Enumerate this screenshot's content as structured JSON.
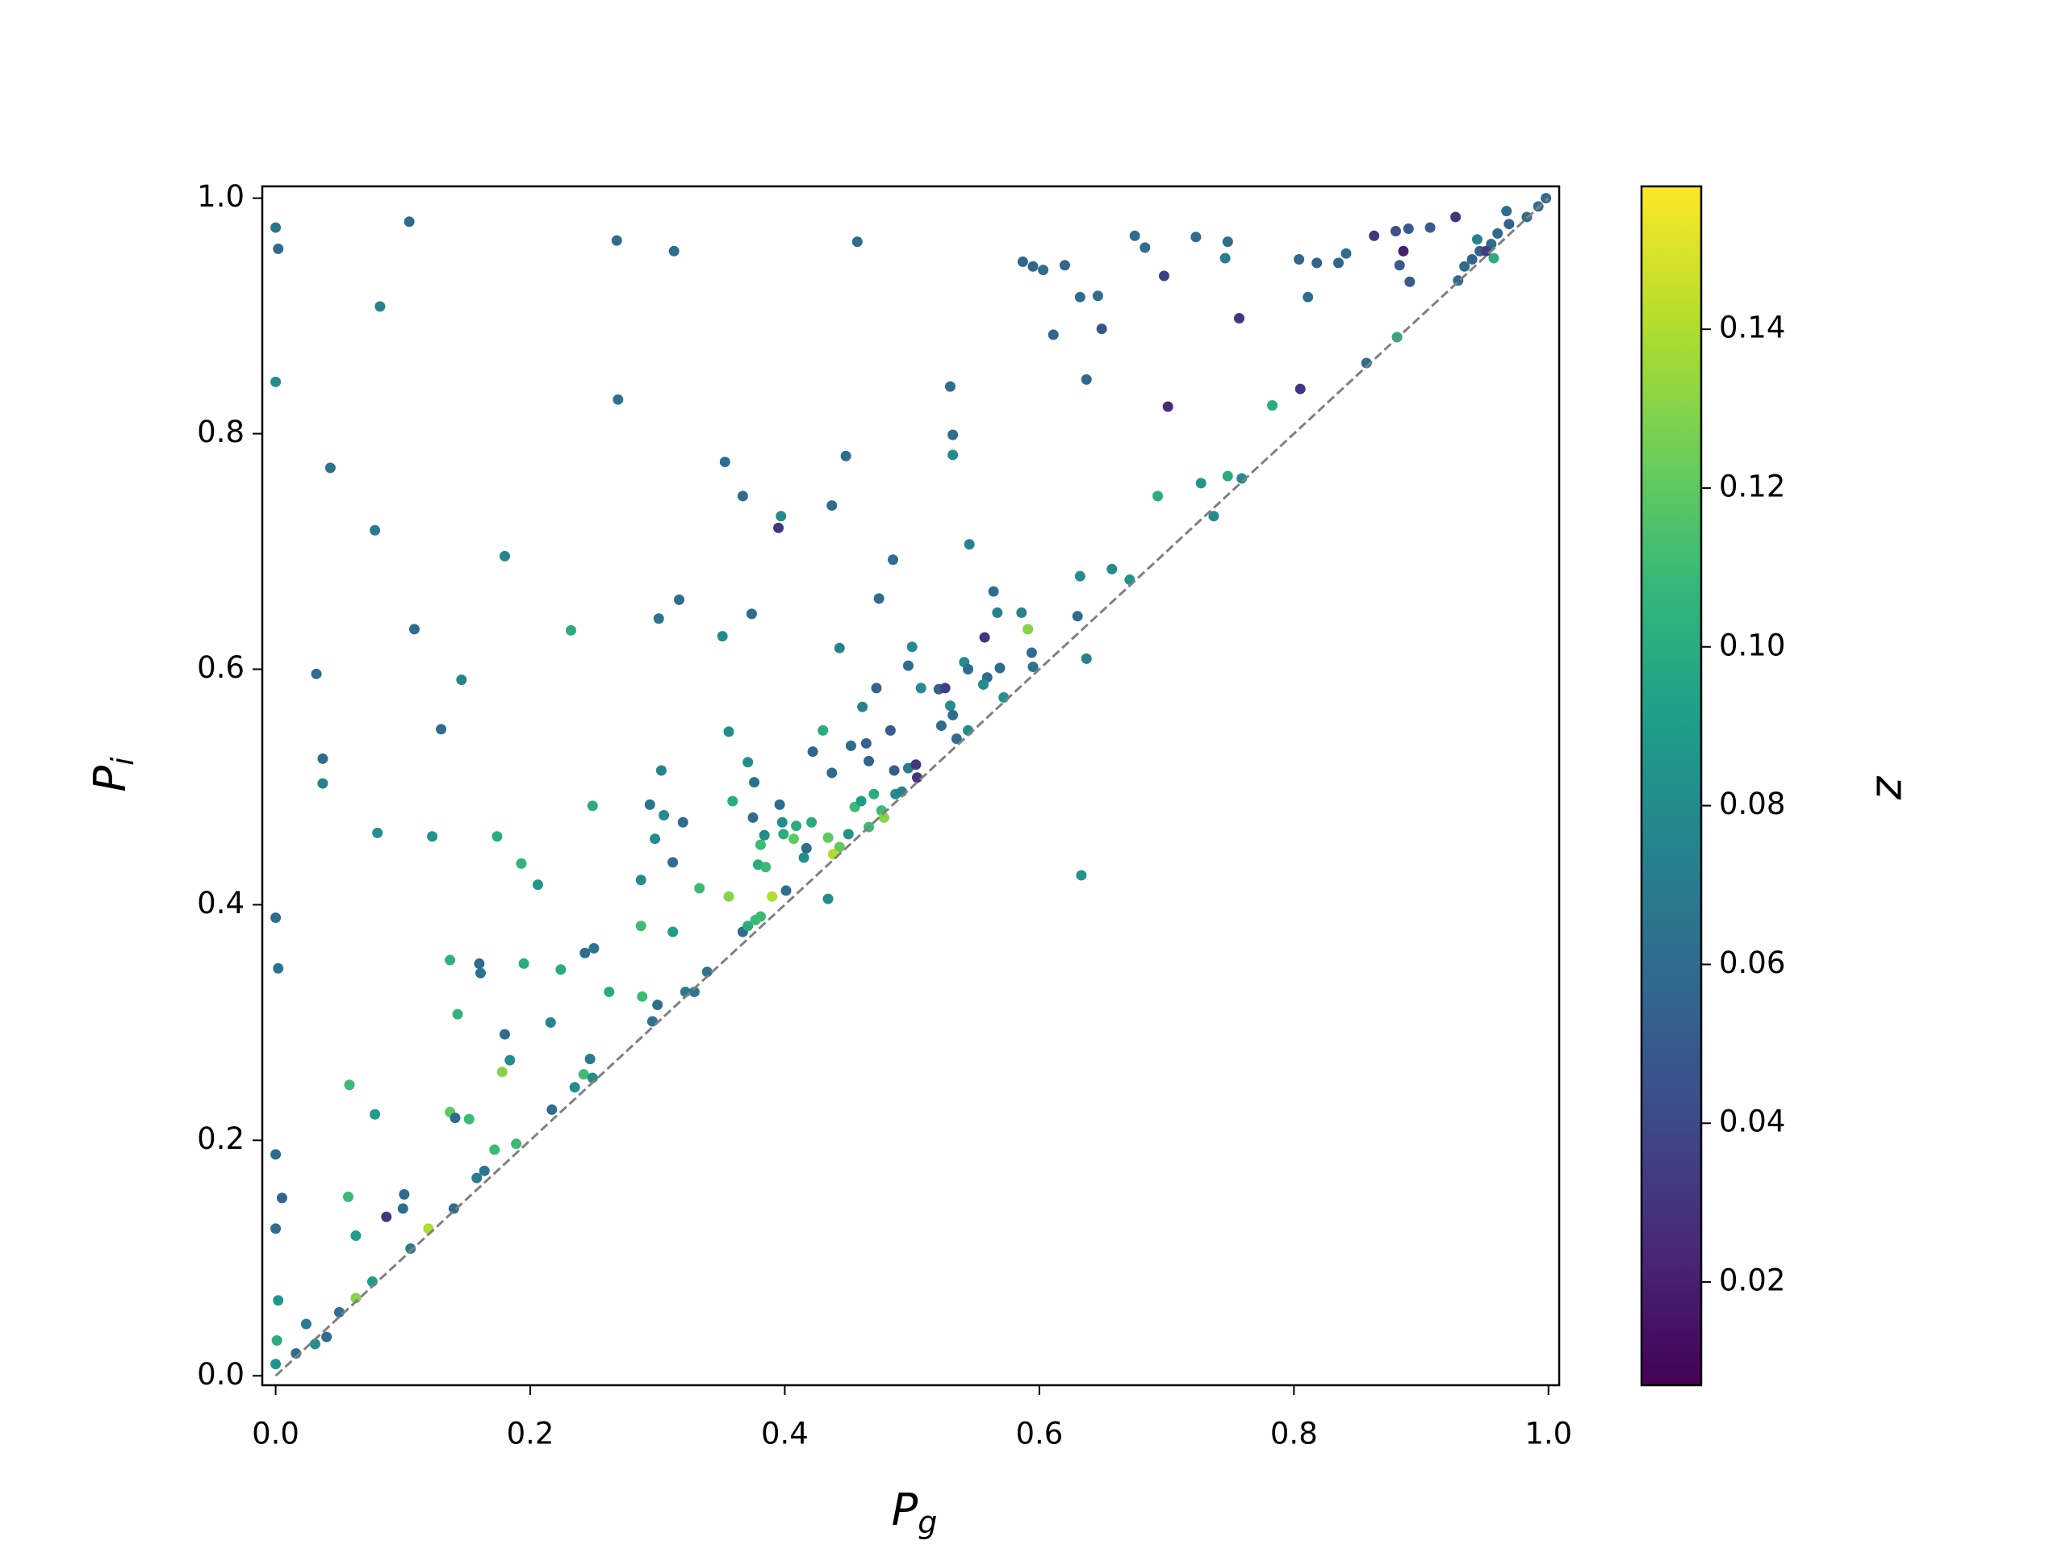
{
  "chart_data": {
    "type": "scatter",
    "xlabel": "P_g",
    "ylabel": "P_i",
    "xlim": [
      -0.0105,
      1.0084
    ],
    "ylim": [
      -0.008,
      1.01
    ],
    "xticks": [
      {
        "value": 0,
        "label": "0.0"
      },
      0.2,
      0.4,
      0.6,
      0.8,
      {
        "value": 1,
        "label": "1.0"
      }
    ],
    "yticks": [
      {
        "value": 0,
        "label": "0.0"
      },
      0.2,
      0.4,
      0.6,
      0.8,
      {
        "value": 1,
        "label": "1.0"
      }
    ],
    "reference_line": {
      "x": [
        0,
        1
      ],
      "y": [
        0,
        1
      ],
      "color": "#808080",
      "style": "dashed"
    },
    "colorbar": {
      "label": "z",
      "colormap": "viridis",
      "lim": [
        0.007,
        0.158
      ],
      "ticks": [
        0.02,
        0.04,
        0.06,
        0.08,
        {
          "value": 0.1,
          "label": "0.10"
        },
        0.12,
        0.14
      ]
    },
    "series": [
      {
        "x": [
          0.0,
          0.002,
          0.105,
          0.082,
          0.0,
          0.043,
          0.078,
          0.032,
          0.037,
          0.037,
          0.08,
          0.0,
          0.002,
          0.0,
          0.005,
          0.0,
          0.002,
          0.001,
          0.0,
          0.024,
          0.016,
          0.05,
          0.063,
          0.076,
          0.058,
          0.078,
          0.057,
          0.063,
          0.087,
          0.1,
          0.101,
          0.106,
          0.12,
          0.109,
          0.13,
          0.123,
          0.146,
          0.18,
          0.174,
          0.137,
          0.16,
          0.161,
          0.143,
          0.193,
          0.206,
          0.195,
          0.224,
          0.18,
          0.184,
          0.137,
          0.152,
          0.141,
          0.172,
          0.189,
          0.178,
          0.216,
          0.217,
          0.158,
          0.164,
          0.14,
          0.232,
          0.249,
          0.243,
          0.25,
          0.262,
          0.247,
          0.242,
          0.249,
          0.268,
          0.269,
          0.313,
          0.317,
          0.301,
          0.303,
          0.294,
          0.305,
          0.298,
          0.32,
          0.287,
          0.312,
          0.287,
          0.312,
          0.288,
          0.3,
          0.296,
          0.322,
          0.329,
          0.333,
          0.339,
          0.353,
          0.351,
          0.367,
          0.374,
          0.356,
          0.359,
          0.356,
          0.371,
          0.376,
          0.379,
          0.375,
          0.384,
          0.381,
          0.385,
          0.367,
          0.381,
          0.39,
          0.395,
          0.397,
          0.396,
          0.398,
          0.399,
          0.401,
          0.407,
          0.409,
          0.417,
          0.421,
          0.415,
          0.422,
          0.437,
          0.443,
          0.434,
          0.43,
          0.448,
          0.457,
          0.437,
          0.434,
          0.443,
          0.438,
          0.452,
          0.461,
          0.466,
          0.464,
          0.472,
          0.474,
          0.485,
          0.483,
          0.486,
          0.497,
          0.5,
          0.497,
          0.507,
          0.503,
          0.504,
          0.523,
          0.521,
          0.526,
          0.53,
          0.532,
          0.532,
          0.53,
          0.532,
          0.535,
          0.545,
          0.541,
          0.544,
          0.544,
          0.557,
          0.559,
          0.556,
          0.564,
          0.567,
          0.569,
          0.572,
          0.586,
          0.591,
          0.594,
          0.595,
          0.587,
          0.595,
          0.603,
          0.62,
          0.611,
          0.632,
          0.646,
          0.649,
          0.637,
          0.632,
          0.63,
          0.637,
          0.633,
          0.657,
          0.671,
          0.675,
          0.683,
          0.698,
          0.701,
          0.693,
          0.723,
          0.727,
          0.737,
          0.748,
          0.746,
          0.757,
          0.748,
          0.759,
          0.783,
          0.804,
          0.805,
          0.811,
          0.818,
          0.835,
          0.841,
          0.857,
          0.863,
          0.88,
          0.883,
          0.886,
          0.89,
          0.891,
          0.881,
          0.907,
          0.927,
          0.929,
          0.934,
          0.944,
          0.94,
          0.946,
          0.957,
          0.96,
          0.967,
          0.969,
          0.983,
          0.992,
          0.998,
          0.955,
          0.951,
          0.455,
          0.46,
          0.47,
          0.476,
          0.478,
          0.487,
          0.492,
          0.466,
          0.45,
          0.371,
          0.377,
          0.235,
          0.04,
          0.031
        ],
        "y": [
          0.975,
          0.957,
          0.98,
          0.908,
          0.844,
          0.771,
          0.718,
          0.596,
          0.524,
          0.503,
          0.461,
          0.389,
          0.346,
          0.188,
          0.151,
          0.125,
          0.064,
          0.03,
          0.01,
          0.044,
          0.019,
          0.054,
          0.066,
          0.08,
          0.247,
          0.222,
          0.152,
          0.119,
          0.135,
          0.142,
          0.154,
          0.108,
          0.125,
          0.634,
          0.549,
          0.458,
          0.591,
          0.696,
          0.458,
          0.353,
          0.35,
          0.342,
          0.307,
          0.435,
          0.417,
          0.35,
          0.345,
          0.29,
          0.268,
          0.224,
          0.218,
          0.219,
          0.192,
          0.197,
          0.258,
          0.3,
          0.226,
          0.168,
          0.174,
          0.142,
          0.633,
          0.484,
          0.359,
          0.363,
          0.326,
          0.269,
          0.256,
          0.253,
          0.964,
          0.829,
          0.955,
          0.659,
          0.643,
          0.514,
          0.485,
          0.476,
          0.456,
          0.47,
          0.421,
          0.436,
          0.382,
          0.377,
          0.322,
          0.315,
          0.301,
          0.326,
          0.326,
          0.414,
          0.343,
          0.776,
          0.628,
          0.747,
          0.647,
          0.547,
          0.488,
          0.407,
          0.521,
          0.504,
          0.434,
          0.474,
          0.459,
          0.451,
          0.432,
          0.377,
          0.39,
          0.407,
          0.72,
          0.73,
          0.485,
          0.47,
          0.46,
          0.412,
          0.456,
          0.467,
          0.448,
          0.47,
          0.44,
          0.53,
          0.739,
          0.618,
          0.405,
          0.548,
          0.781,
          0.963,
          0.512,
          0.457,
          0.449,
          0.443,
          0.535,
          0.568,
          0.522,
          0.537,
          0.584,
          0.66,
          0.693,
          0.548,
          0.514,
          0.516,
          0.619,
          0.603,
          0.584,
          0.519,
          0.508,
          0.552,
          0.583,
          0.584,
          0.84,
          0.799,
          0.782,
          0.569,
          0.561,
          0.541,
          0.706,
          0.606,
          0.6,
          0.548,
          0.627,
          0.593,
          0.587,
          0.666,
          0.648,
          0.601,
          0.576,
          0.648,
          0.634,
          0.614,
          0.602,
          0.946,
          0.942,
          0.939,
          0.943,
          0.884,
          0.916,
          0.917,
          0.889,
          0.846,
          0.679,
          0.645,
          0.609,
          0.425,
          0.685,
          0.676,
          0.968,
          0.958,
          0.934,
          0.823,
          0.747,
          0.967,
          0.758,
          0.73,
          0.963,
          0.949,
          0.898,
          0.764,
          0.762,
          0.824,
          0.948,
          0.838,
          0.916,
          0.945,
          0.945,
          0.953,
          0.86,
          0.968,
          0.972,
          0.943,
          0.955,
          0.974,
          0.929,
          0.882,
          0.975,
          0.984,
          0.93,
          0.942,
          0.965,
          0.948,
          0.955,
          0.949,
          0.97,
          0.989,
          0.978,
          0.984,
          0.993,
          1.0,
          0.961,
          0.955,
          0.483,
          0.488,
          0.494,
          0.48,
          0.474,
          0.494,
          0.496,
          0.466,
          0.46,
          0.382,
          0.387,
          0.245,
          0.033,
          0.027
        ],
        "z": [
          0.065,
          0.06,
          0.06,
          0.075,
          0.08,
          0.065,
          0.07,
          0.06,
          0.06,
          0.075,
          0.08,
          0.06,
          0.065,
          0.06,
          0.055,
          0.06,
          0.085,
          0.1,
          0.085,
          0.07,
          0.06,
          0.065,
          0.13,
          0.09,
          0.11,
          0.09,
          0.11,
          0.09,
          0.03,
          0.06,
          0.06,
          0.07,
          0.14,
          0.06,
          0.06,
          0.085,
          0.075,
          0.075,
          0.1,
          0.105,
          0.06,
          0.065,
          0.105,
          0.105,
          0.085,
          0.1,
          0.1,
          0.06,
          0.08,
          0.12,
          0.11,
          0.06,
          0.11,
          0.11,
          0.13,
          0.075,
          0.06,
          0.07,
          0.065,
          0.06,
          0.1,
          0.1,
          0.06,
          0.065,
          0.1,
          0.07,
          0.11,
          0.08,
          0.06,
          0.065,
          0.06,
          0.06,
          0.065,
          0.075,
          0.065,
          0.08,
          0.08,
          0.06,
          0.08,
          0.06,
          0.11,
          0.09,
          0.11,
          0.06,
          0.065,
          0.07,
          0.065,
          0.11,
          0.065,
          0.06,
          0.08,
          0.06,
          0.06,
          0.08,
          0.1,
          0.13,
          0.08,
          0.065,
          0.1,
          0.06,
          0.08,
          0.11,
          0.11,
          0.06,
          0.11,
          0.14,
          0.03,
          0.08,
          0.06,
          0.08,
          0.1,
          0.06,
          0.12,
          0.1,
          0.06,
          0.1,
          0.08,
          0.055,
          0.06,
          0.075,
          0.08,
          0.1,
          0.06,
          0.06,
          0.06,
          0.12,
          0.12,
          0.14,
          0.06,
          0.075,
          0.055,
          0.055,
          0.055,
          0.06,
          0.06,
          0.05,
          0.05,
          0.07,
          0.08,
          0.06,
          0.08,
          0.03,
          0.03,
          0.06,
          0.055,
          0.035,
          0.06,
          0.06,
          0.08,
          0.08,
          0.06,
          0.06,
          0.075,
          0.08,
          0.06,
          0.08,
          0.03,
          0.06,
          0.08,
          0.06,
          0.075,
          0.06,
          0.085,
          0.075,
          0.13,
          0.06,
          0.065,
          0.055,
          0.055,
          0.06,
          0.055,
          0.055,
          0.06,
          0.06,
          0.045,
          0.06,
          0.08,
          0.06,
          0.075,
          0.085,
          0.08,
          0.085,
          0.06,
          0.06,
          0.035,
          0.025,
          0.1,
          0.06,
          0.085,
          0.08,
          0.06,
          0.07,
          0.03,
          0.1,
          0.08,
          0.1,
          0.055,
          0.03,
          0.06,
          0.055,
          0.055,
          0.06,
          0.06,
          0.03,
          0.045,
          0.05,
          0.02,
          0.05,
          0.05,
          0.1,
          0.05,
          0.03,
          0.06,
          0.06,
          0.075,
          0.055,
          0.055,
          0.1,
          0.06,
          0.06,
          0.055,
          0.06,
          0.06,
          0.06,
          0.06,
          0.035,
          0.11,
          0.09,
          0.1,
          0.11,
          0.13,
          0.08,
          0.075,
          0.11,
          0.085,
          0.1,
          0.11,
          0.08,
          0.06,
          0.08
        ]
      }
    ]
  }
}
